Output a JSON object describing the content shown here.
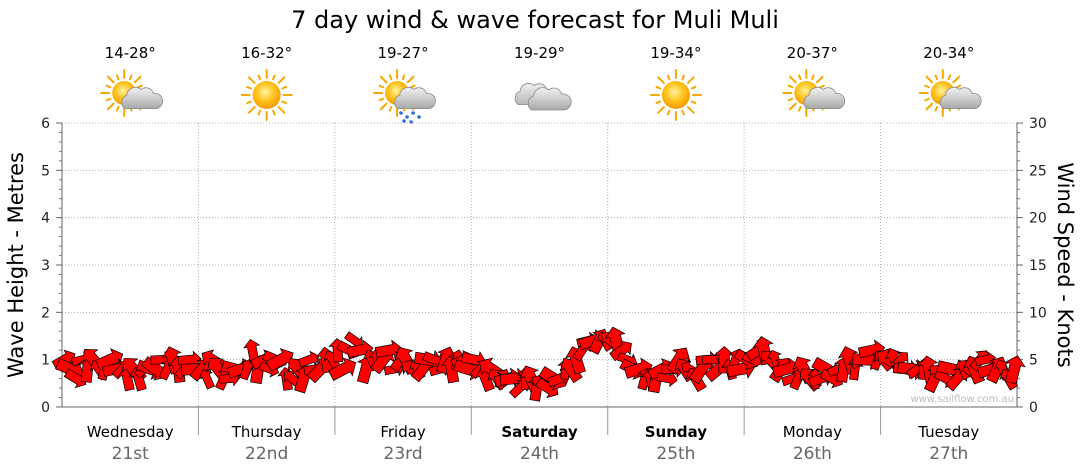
{
  "chart_data": {
    "type": "wind-wave forecast",
    "title": "7 day wind & wave forecast for Muli Muli",
    "ylabel_left": "Wave Height - Metres",
    "ylabel_right": "Wind Speed - Knots",
    "ylim_left": [
      0,
      6
    ],
    "ylim_right": [
      0,
      30
    ],
    "yticks_left": [
      "0",
      "1",
      "2",
      "3",
      "4",
      "5",
      "6"
    ],
    "yticks_right": [
      "0",
      "5",
      "10",
      "15",
      "20",
      "25",
      "30"
    ],
    "grid": true,
    "days": [
      {
        "name": "Wednesday",
        "date": "21st",
        "temp": "14-28°",
        "icon": "partly-cloudy-icon",
        "bold": false
      },
      {
        "name": "Thursday",
        "date": "22nd",
        "temp": "16-32°",
        "icon": "sun-icon",
        "bold": false
      },
      {
        "name": "Friday",
        "date": "23rd",
        "temp": "19-27°",
        "icon": "sun-rain-icon",
        "bold": false
      },
      {
        "name": "Saturday",
        "date": "24th",
        "temp": "19-29°",
        "icon": "cloud-icon",
        "bold": true
      },
      {
        "name": "Sunday",
        "date": "25th",
        "temp": "19-34°",
        "icon": "sun-icon",
        "bold": true
      },
      {
        "name": "Monday",
        "date": "26th",
        "temp": "20-37°",
        "icon": "partly-cloudy-icon",
        "bold": false
      },
      {
        "name": "Tuesday",
        "date": "27th",
        "temp": "20-34°",
        "icon": "partly-cloudy-icon",
        "bold": false
      }
    ],
    "wind_knots": [
      5,
      4,
      3,
      5,
      4,
      5,
      4,
      4,
      5,
      4,
      4,
      3,
      4,
      3,
      4,
      4,
      4,
      5,
      4,
      5,
      4,
      4,
      5,
      4,
      4,
      3,
      5,
      4,
      3,
      3,
      4,
      4,
      4,
      6,
      4,
      5,
      4,
      5,
      5,
      3,
      3,
      4,
      3,
      5,
      4,
      4,
      5,
      5,
      6,
      4,
      6,
      7,
      6,
      4,
      5,
      5,
      5,
      6,
      4,
      5,
      5,
      4,
      4,
      4,
      5,
      5,
      4,
      5,
      4,
      5,
      5,
      4,
      5,
      4,
      3,
      4,
      3,
      3,
      3,
      3,
      2,
      3,
      3,
      2,
      3,
      2,
      3,
      3,
      4,
      4,
      5,
      6,
      7,
      7,
      7,
      7,
      7,
      7,
      6,
      5,
      4,
      4,
      3,
      3,
      3,
      4,
      3,
      4,
      5,
      4,
      4,
      3,
      4,
      5,
      5,
      4,
      5,
      4,
      5,
      4,
      5,
      5,
      6,
      6,
      5,
      5,
      4,
      4,
      3,
      3,
      4,
      3,
      3,
      3,
      4,
      3,
      4,
      4,
      5,
      4,
      5,
      5,
      6,
      5,
      5,
      5,
      5,
      5,
      4,
      4,
      4,
      4,
      4,
      3,
      4,
      3,
      4,
      3,
      4,
      4,
      4,
      5,
      5,
      4,
      4,
      4,
      3,
      4
    ],
    "wind_colors": [
      "#ff0000"
    ],
    "watermark": "www.sailflow.com.au"
  }
}
